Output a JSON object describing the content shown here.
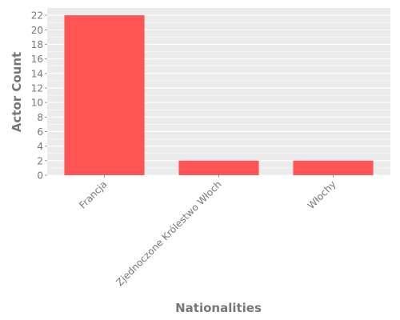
{
  "chart_data": {
    "type": "bar",
    "title": "",
    "xlabel": "Nationalities",
    "ylabel": "Actor Count",
    "categories": [
      "Francja",
      "Zjednoczone Królestwo Włoch",
      "Włochy"
    ],
    "values": [
      22,
      2,
      2
    ],
    "ylim": [
      0,
      23
    ],
    "yticks": [
      "0",
      "2",
      "4",
      "6",
      "8",
      "10",
      "12",
      "14",
      "16",
      "18",
      "20",
      "22"
    ],
    "grid": true,
    "legend": "none",
    "colors": {
      "bar": "#ff5555",
      "panel": "#ebebeb",
      "grid": "#ffffff",
      "text": "#777777"
    }
  }
}
